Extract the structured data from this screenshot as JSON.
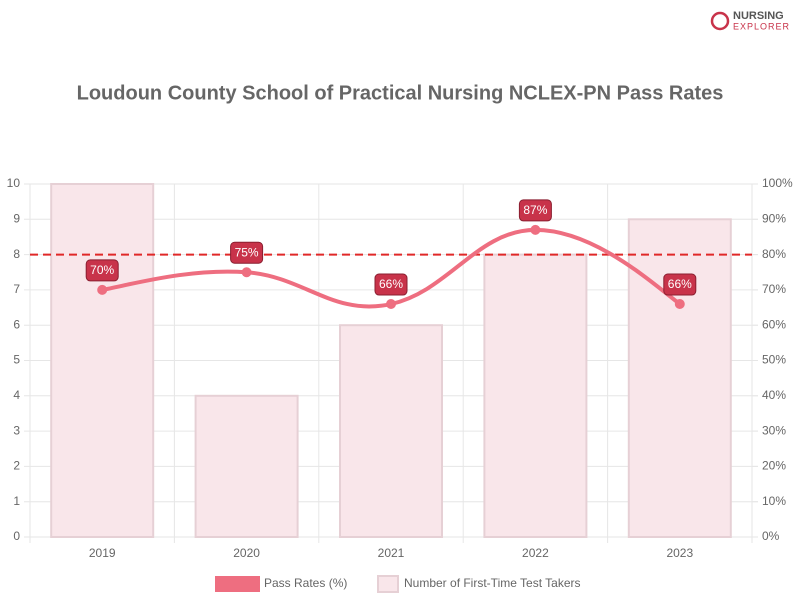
{
  "logo": [
    "NURSING",
    "EXPLORER"
  ],
  "chart_data": {
    "type": "bar",
    "title": "Loudoun County School of Practical Nursing NCLEX-PN Pass Rates",
    "categories": [
      "2019",
      "2020",
      "2021",
      "2022",
      "2023"
    ],
    "series": [
      {
        "name": "Pass Rates (%)",
        "type": "line",
        "axis": "y2",
        "color": "#ee6e80",
        "values": [
          70,
          75,
          66,
          87,
          66
        ],
        "value_labels": [
          "70%",
          "75%",
          "66%",
          "87%",
          "66%"
        ]
      },
      {
        "name": "Number of First-Time Test Takers",
        "type": "bar",
        "color": "#f9e6ea",
        "values": [
          10,
          4,
          6,
          8,
          9
        ]
      }
    ],
    "ylim": [
      0,
      10
    ],
    "yticks": [
      0,
      1,
      2,
      3,
      4,
      5,
      6,
      7,
      8,
      9,
      10
    ],
    "y2lim": [
      0,
      100
    ],
    "y2ticks": [
      {
        "value": 0,
        "label": "0%"
      },
      {
        "value": 10,
        "label": "10%"
      },
      {
        "value": 20,
        "label": "20%"
      },
      {
        "value": 30,
        "label": "30%"
      },
      {
        "value": 40,
        "label": "40%"
      },
      {
        "value": 50,
        "label": "50%"
      },
      {
        "value": 60,
        "label": "60%"
      },
      {
        "value": 70,
        "label": "70%"
      },
      {
        "value": 80,
        "label": "80%"
      },
      {
        "value": 90,
        "label": "90%"
      },
      {
        "value": 100,
        "label": "100%"
      }
    ],
    "reference_line": {
      "value": 80,
      "axis": "y2",
      "color": "#e02828"
    },
    "grid": true
  }
}
